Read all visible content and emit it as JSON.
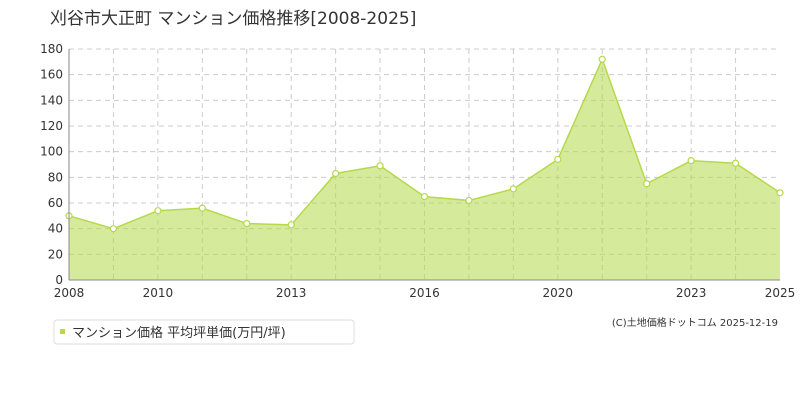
{
  "chart_data": {
    "type": "area",
    "title": "刈谷市大正町 マンション価格推移[2008-2025]",
    "categories": [
      "2008",
      null,
      "2010",
      null,
      null,
      "2013",
      null,
      null,
      "2016",
      null,
      null,
      "2020",
      null,
      null,
      "2023",
      null,
      "2025"
    ],
    "series": [
      {
        "name": "マンション価格 平均坪単価(万円/坪)",
        "color": "#b5d94a",
        "values": [
          50,
          40,
          54,
          56,
          44,
          43,
          83,
          89,
          65,
          62,
          71,
          94,
          172,
          75,
          93,
          91,
          68
        ]
      }
    ],
    "ylim": [
      0,
      180
    ],
    "yticks": [
      0,
      20,
      40,
      60,
      80,
      100,
      120,
      140,
      160,
      180
    ],
    "grid": true,
    "credit": "(C)土地価格ドットコム 2025-12-19"
  }
}
